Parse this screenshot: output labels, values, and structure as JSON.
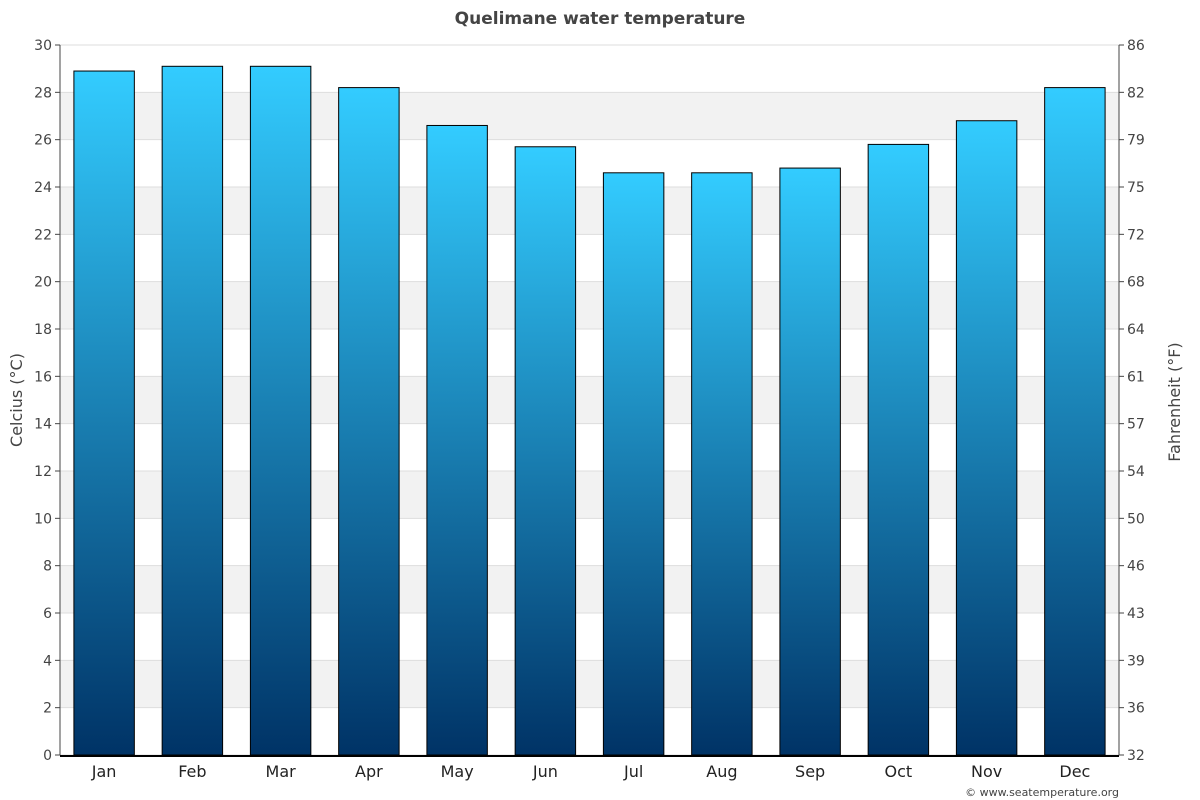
{
  "chart_data": {
    "type": "bar",
    "title": "Quelimane water temperature",
    "categories": [
      "Jan",
      "Feb",
      "Mar",
      "Apr",
      "May",
      "Jun",
      "Jul",
      "Aug",
      "Sep",
      "Oct",
      "Nov",
      "Dec"
    ],
    "values": [
      28.9,
      29.1,
      29.1,
      28.2,
      26.6,
      25.7,
      24.6,
      24.6,
      24.8,
      25.8,
      26.8,
      28.2
    ],
    "ylabel": "Celcius (°C)",
    "ylabel_right": "Fahrenheit (°F)",
    "ylim": [
      0,
      30
    ],
    "yticks": [
      "0",
      "2",
      "4",
      "6",
      "8",
      "10",
      "12",
      "14",
      "16",
      "18",
      "20",
      "22",
      "24",
      "26",
      "28",
      "30"
    ],
    "yticks_right": [
      "32",
      "36",
      "39",
      "43",
      "46",
      "50",
      "54",
      "57",
      "61",
      "64",
      "68",
      "72",
      "75",
      "79",
      "82",
      "86"
    ],
    "grid": "horizontal alternating bands",
    "bar_color_top": "#33ccff",
    "bar_color_bottom": "#003366",
    "credit": "© www.seatemperature.org"
  }
}
